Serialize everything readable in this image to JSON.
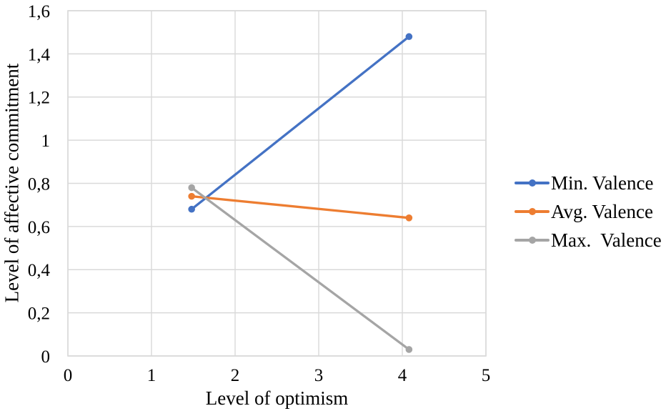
{
  "chart_data": {
    "type": "line",
    "title": "",
    "xlabel": "Level of optimism",
    "ylabel": "Level of affective commitment",
    "xlim": [
      0,
      5
    ],
    "ylim": [
      0,
      1.6
    ],
    "grid": true,
    "grid_color": "#d9d9d9",
    "axis_text_color": "#000000",
    "legend_position": "right",
    "x_ticks": [
      {
        "value": 0,
        "label": "0"
      },
      {
        "value": 1,
        "label": "1"
      },
      {
        "value": 2,
        "label": "2"
      },
      {
        "value": 3,
        "label": "3"
      },
      {
        "value": 4,
        "label": "4"
      },
      {
        "value": 5,
        "label": "5"
      }
    ],
    "y_ticks": [
      {
        "value": 0,
        "label": "0"
      },
      {
        "value": 0.2,
        "label": "0,2"
      },
      {
        "value": 0.4,
        "label": "0,4"
      },
      {
        "value": 0.6,
        "label": "0,6"
      },
      {
        "value": 0.8,
        "label": "0,8"
      },
      {
        "value": 1,
        "label": "1"
      },
      {
        "value": 1.2,
        "label": "1,2"
      },
      {
        "value": 1.4,
        "label": "1,4"
      },
      {
        "value": 1.6,
        "label": "1,6"
      }
    ],
    "series": [
      {
        "name": "Min. Valence",
        "color": "#4472c4",
        "points": [
          [
            1.48,
            0.68
          ],
          [
            4.08,
            1.48
          ]
        ]
      },
      {
        "name": "Avg. Valence",
        "color": "#ed7d31",
        "points": [
          [
            1.48,
            0.74
          ],
          [
            4.08,
            0.64
          ]
        ]
      },
      {
        "name": "Max.  Valence",
        "color": "#a5a5a5",
        "points": [
          [
            1.48,
            0.78
          ],
          [
            4.08,
            0.03
          ]
        ]
      }
    ]
  }
}
